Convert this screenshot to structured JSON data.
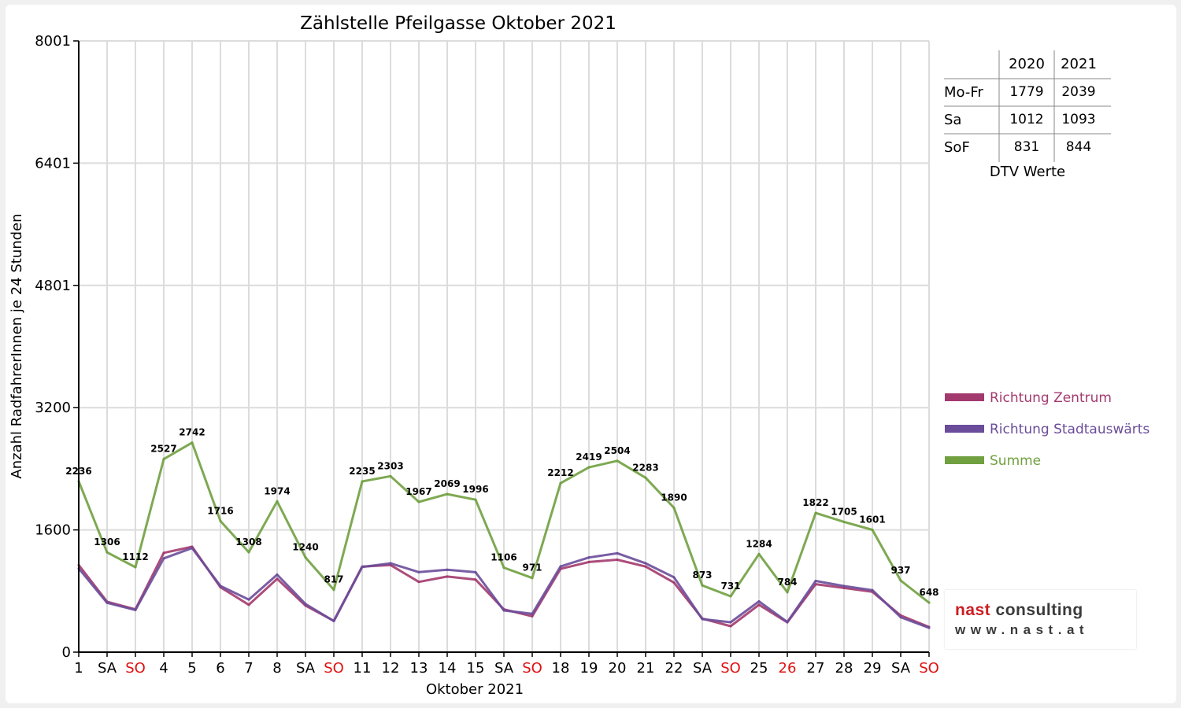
{
  "chart_data": {
    "type": "line",
    "title": "Zählstelle Pfeilgasse Oktober 2021",
    "xlabel": "Oktober 2021",
    "ylabel": "Anzahl RadfahrerInnen je 24 Stunden",
    "ylim": [
      0,
      8001
    ],
    "yticks": [
      "0",
      "1600",
      "3200",
      "4801",
      "6401",
      "8001"
    ],
    "ytick_values": [
      0,
      1600,
      3200,
      4801,
      6401,
      8001
    ],
    "grid": true,
    "legend_position": "right",
    "categories": [
      "1",
      "SA",
      "SO",
      "4",
      "5",
      "6",
      "7",
      "8",
      "SA",
      "SO",
      "11",
      "12",
      "13",
      "14",
      "15",
      "SA",
      "SO",
      "18",
      "19",
      "20",
      "21",
      "22",
      "SA",
      "SO",
      "25",
      "26",
      "27",
      "28",
      "29",
      "SA",
      "SO"
    ],
    "red_categories": [
      2,
      9,
      16,
      23,
      25,
      30
    ],
    "series": [
      {
        "name": "Richtung Zentrum",
        "color": "#a33a6e",
        "values": [
          1140,
          660,
          560,
          1300,
          1380,
          850,
          620,
          960,
          610,
          410,
          1120,
          1140,
          920,
          990,
          950,
          560,
          470,
          1090,
          1180,
          1210,
          1120,
          910,
          440,
          340,
          620,
          390,
          890,
          840,
          790,
          480,
          330
        ]
      },
      {
        "name": "Richtung Stadtauswärts",
        "color": "#6a4c9a",
        "values": [
          1096,
          646,
          552,
          1227,
          1362,
          866,
          688,
          1014,
          630,
          407,
          1115,
          1163,
          1047,
          1079,
          1046,
          546,
          501,
          1122,
          1239,
          1294,
          1163,
          980,
          433,
          391,
          664,
          394,
          932,
          865,
          811,
          457,
          318
        ]
      },
      {
        "name": "Summe",
        "color": "#70a040",
        "values": [
          2236,
          1306,
          1112,
          2527,
          2742,
          1716,
          1308,
          1974,
          1240,
          817,
          2235,
          2303,
          1967,
          2069,
          1996,
          1106,
          971,
          2212,
          2419,
          2504,
          2283,
          1890,
          873,
          731,
          1284,
          784,
          1822,
          1705,
          1601,
          937,
          648
        ],
        "labels": [
          "2236",
          "1306",
          "1112",
          "2527",
          "2742",
          "1716",
          "1308",
          "1974",
          "1240",
          "817",
          "2235",
          "2303",
          "1967",
          "2069",
          "1996",
          "1106",
          "971",
          "2212",
          "2419",
          "2504",
          "2283",
          "1890",
          "873",
          "731",
          "1284",
          "784",
          "1822",
          "1705",
          "1601",
          "937",
          "648"
        ]
      }
    ]
  },
  "dtv_table": {
    "headers": [
      "",
      "2020",
      "2021"
    ],
    "rows": [
      {
        "label": "Mo-Fr",
        "v2020": "1779",
        "v2021": "2039"
      },
      {
        "label": "Sa",
        "v2020": "1012",
        "v2021": "1093"
      },
      {
        "label": "SoF",
        "v2020": "831",
        "v2021": "844"
      }
    ],
    "caption": "DTV Werte"
  },
  "logo": {
    "brand_part1": "nast",
    "brand_part2": " consulting",
    "url": "www.nast.at"
  }
}
